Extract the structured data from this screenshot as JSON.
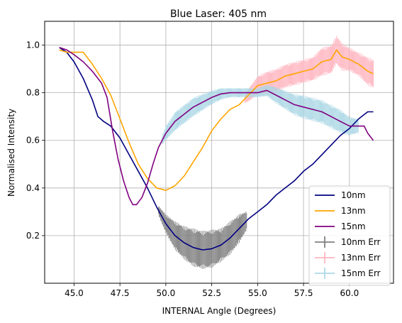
{
  "chart_data": {
    "type": "line",
    "title": "Blue Laser: 405 nm",
    "xlabel": "INTERNAL Angle (Degrees)",
    "ylabel": "Normalised Intensity",
    "xlim": [
      43.4,
      62.4
    ],
    "ylim": [
      0.0,
      1.1
    ],
    "x_ticks": [
      45.0,
      47.5,
      50.0,
      52.5,
      55.0,
      57.5,
      60.0
    ],
    "x_tick_labels": [
      "45.0",
      "47.5",
      "50.0",
      "52.5",
      "55.0",
      "57.5",
      "60.0"
    ],
    "y_ticks": [
      0.2,
      0.4,
      0.6,
      0.8,
      1.0
    ],
    "y_tick_labels": [
      "0.2",
      "0.4",
      "0.6",
      "0.8",
      "1.0"
    ],
    "grid": true,
    "legend_position": "lower-right",
    "series": [
      {
        "name": "10nm",
        "color": "#000080",
        "kind": "line",
        "points": [
          [
            44.2,
            0.99
          ],
          [
            44.6,
            0.97
          ],
          [
            45.0,
            0.93
          ],
          [
            45.5,
            0.86
          ],
          [
            46.0,
            0.77
          ],
          [
            46.3,
            0.7
          ],
          [
            46.6,
            0.68
          ],
          [
            47.0,
            0.66
          ],
          [
            47.5,
            0.61
          ],
          [
            48.0,
            0.54
          ],
          [
            48.5,
            0.47
          ],
          [
            49.0,
            0.4
          ],
          [
            49.5,
            0.32
          ],
          [
            50.0,
            0.25
          ],
          [
            50.5,
            0.2
          ],
          [
            51.0,
            0.17
          ],
          [
            51.5,
            0.15
          ],
          [
            52.0,
            0.14
          ],
          [
            52.5,
            0.145
          ],
          [
            53.0,
            0.16
          ],
          [
            53.5,
            0.19
          ],
          [
            54.0,
            0.23
          ],
          [
            54.5,
            0.27
          ],
          [
            55.0,
            0.3
          ],
          [
            55.5,
            0.33
          ],
          [
            56.0,
            0.37
          ],
          [
            56.5,
            0.4
          ],
          [
            57.0,
            0.43
          ],
          [
            57.5,
            0.47
          ],
          [
            58.0,
            0.5
          ],
          [
            58.5,
            0.54
          ],
          [
            59.0,
            0.58
          ],
          [
            59.5,
            0.62
          ],
          [
            60.0,
            0.65
          ],
          [
            60.5,
            0.69
          ],
          [
            61.0,
            0.72
          ],
          [
            61.3,
            0.72
          ]
        ]
      },
      {
        "name": "13nm",
        "color": "#ffa500",
        "kind": "line",
        "points": [
          [
            44.2,
            0.98
          ],
          [
            44.6,
            0.97
          ],
          [
            45.0,
            0.97
          ],
          [
            45.5,
            0.97
          ],
          [
            46.0,
            0.92
          ],
          [
            46.5,
            0.86
          ],
          [
            47.0,
            0.79
          ],
          [
            47.5,
            0.69
          ],
          [
            48.0,
            0.59
          ],
          [
            48.5,
            0.5
          ],
          [
            49.0,
            0.44
          ],
          [
            49.5,
            0.4
          ],
          [
            50.0,
            0.39
          ],
          [
            50.5,
            0.41
          ],
          [
            51.0,
            0.45
          ],
          [
            51.5,
            0.51
          ],
          [
            52.0,
            0.57
          ],
          [
            52.5,
            0.64
          ],
          [
            53.0,
            0.69
          ],
          [
            53.5,
            0.73
          ],
          [
            54.0,
            0.75
          ],
          [
            54.5,
            0.79
          ],
          [
            55.0,
            0.83
          ],
          [
            55.5,
            0.84
          ],
          [
            56.0,
            0.85
          ],
          [
            56.5,
            0.87
          ],
          [
            57.0,
            0.88
          ],
          [
            57.5,
            0.89
          ],
          [
            58.0,
            0.9
          ],
          [
            58.5,
            0.93
          ],
          [
            59.0,
            0.94
          ],
          [
            59.3,
            0.98
          ],
          [
            59.6,
            0.95
          ],
          [
            60.0,
            0.94
          ],
          [
            60.5,
            0.92
          ],
          [
            61.0,
            0.89
          ],
          [
            61.3,
            0.88
          ]
        ]
      },
      {
        "name": "15nm",
        "color": "#800080",
        "kind": "line",
        "points": [
          [
            44.2,
            0.99
          ],
          [
            44.6,
            0.98
          ],
          [
            45.0,
            0.96
          ],
          [
            45.5,
            0.93
          ],
          [
            46.0,
            0.89
          ],
          [
            46.5,
            0.84
          ],
          [
            46.8,
            0.78
          ],
          [
            47.1,
            0.64
          ],
          [
            47.4,
            0.52
          ],
          [
            47.7,
            0.43
          ],
          [
            48.0,
            0.36
          ],
          [
            48.2,
            0.33
          ],
          [
            48.4,
            0.33
          ],
          [
            48.7,
            0.36
          ],
          [
            49.0,
            0.42
          ],
          [
            49.3,
            0.5
          ],
          [
            49.6,
            0.57
          ],
          [
            50.0,
            0.63
          ],
          [
            50.5,
            0.68
          ],
          [
            51.0,
            0.71
          ],
          [
            51.5,
            0.74
          ],
          [
            52.0,
            0.76
          ],
          [
            52.5,
            0.78
          ],
          [
            53.0,
            0.795
          ],
          [
            53.5,
            0.8
          ],
          [
            54.0,
            0.8
          ],
          [
            54.5,
            0.8
          ],
          [
            55.0,
            0.8
          ],
          [
            55.5,
            0.81
          ],
          [
            56.0,
            0.79
          ],
          [
            56.5,
            0.77
          ],
          [
            57.0,
            0.75
          ],
          [
            57.5,
            0.74
          ],
          [
            58.0,
            0.73
          ],
          [
            58.5,
            0.72
          ],
          [
            59.0,
            0.7
          ],
          [
            59.5,
            0.68
          ],
          [
            60.0,
            0.66
          ],
          [
            60.5,
            0.66
          ],
          [
            60.8,
            0.66
          ],
          [
            61.0,
            0.63
          ],
          [
            61.3,
            0.6
          ]
        ]
      },
      {
        "name": "10nm Err",
        "color": "#808080",
        "kind": "errorbar",
        "error_ranges": [
          [
            49.6,
            0.02
          ],
          [
            50.0,
            0.04
          ],
          [
            50.5,
            0.06
          ],
          [
            51.0,
            0.07
          ],
          [
            51.5,
            0.08
          ],
          [
            52.0,
            0.08
          ],
          [
            52.5,
            0.08
          ],
          [
            53.0,
            0.07
          ],
          [
            53.5,
            0.07
          ],
          [
            54.0,
            0.06
          ],
          [
            54.4,
            0.04
          ]
        ]
      },
      {
        "name": "13nm Err",
        "color": "#ffb6c1",
        "kind": "errorbar",
        "error_ranges": [
          [
            54.3,
            0.02
          ],
          [
            54.6,
            0.03
          ],
          [
            55.0,
            0.04
          ],
          [
            55.5,
            0.05
          ],
          [
            56.0,
            0.05
          ],
          [
            56.5,
            0.05
          ],
          [
            57.0,
            0.05
          ],
          [
            57.5,
            0.05
          ],
          [
            58.0,
            0.05
          ],
          [
            58.5,
            0.06
          ],
          [
            59.0,
            0.06
          ],
          [
            59.5,
            0.06
          ],
          [
            60.0,
            0.05
          ],
          [
            60.5,
            0.05
          ],
          [
            61.0,
            0.06
          ],
          [
            61.3,
            0.06
          ]
        ]
      },
      {
        "name": "15nm Err",
        "color": "#add8e6",
        "kind": "errorbar",
        "error_ranges": [
          [
            49.8,
            0.02
          ],
          [
            50.0,
            0.03
          ],
          [
            50.5,
            0.04
          ],
          [
            51.0,
            0.04
          ],
          [
            51.5,
            0.04
          ],
          [
            52.0,
            0.035
          ],
          [
            52.5,
            0.03
          ],
          [
            53.0,
            0.025
          ],
          [
            53.5,
            0.02
          ],
          [
            54.0,
            0.02
          ],
          [
            54.5,
            0.02
          ],
          [
            55.0,
            0.02
          ],
          [
            55.5,
            0.025
          ],
          [
            56.0,
            0.035
          ],
          [
            56.5,
            0.04
          ],
          [
            57.0,
            0.045
          ],
          [
            57.5,
            0.05
          ],
          [
            58.0,
            0.05
          ],
          [
            58.5,
            0.05
          ],
          [
            59.0,
            0.05
          ],
          [
            59.5,
            0.05
          ],
          [
            60.0,
            0.04
          ],
          [
            60.5,
            0.03
          ]
        ]
      }
    ]
  }
}
